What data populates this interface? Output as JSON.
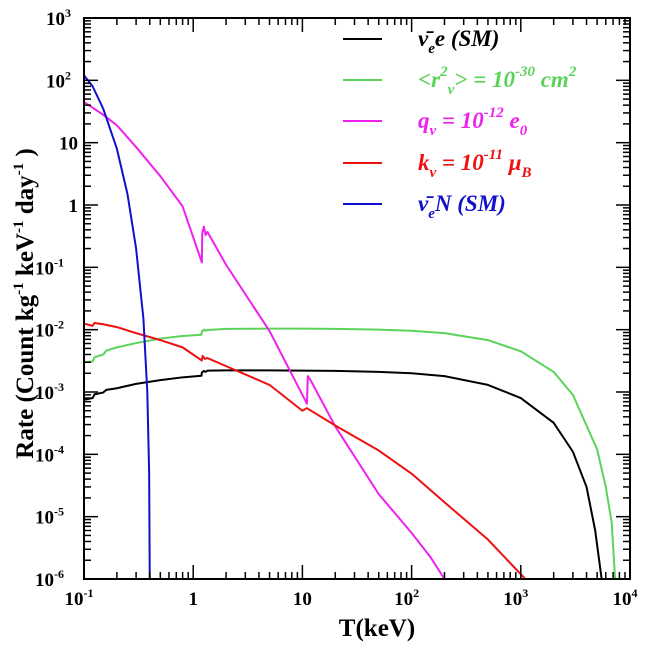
{
  "chart_data": {
    "type": "line",
    "title": "",
    "xlabel": "T(keV)",
    "ylabel_parts": [
      "Rate (Count kg",
      "-1",
      " keV",
      "-1",
      " day",
      "-1",
      " )"
    ],
    "xscale": "log",
    "yscale": "log",
    "xlim": [
      0.1,
      10000
    ],
    "ylim": [
      1e-06,
      1000
    ],
    "grid": false,
    "legend_position": "top-right",
    "x_ticks": [
      {
        "value": 0.1,
        "base": "10",
        "exp": "-1"
      },
      {
        "value": 1,
        "base": "1",
        "exp": ""
      },
      {
        "value": 10,
        "base": "10",
        "exp": ""
      },
      {
        "value": 100,
        "base": "10",
        "exp": "2"
      },
      {
        "value": 1000,
        "base": "10",
        "exp": "3"
      },
      {
        "value": 10000,
        "base": "10",
        "exp": "4"
      }
    ],
    "y_ticks": [
      {
        "value": 1e-06,
        "base": "10",
        "exp": "-6"
      },
      {
        "value": 1e-05,
        "base": "10",
        "exp": "-5"
      },
      {
        "value": 0.0001,
        "base": "10",
        "exp": "-4"
      },
      {
        "value": 0.001,
        "base": "10",
        "exp": "-3"
      },
      {
        "value": 0.01,
        "base": "10",
        "exp": "-2"
      },
      {
        "value": 0.1,
        "base": "10",
        "exp": "-1"
      },
      {
        "value": 1,
        "base": "1",
        "exp": ""
      },
      {
        "value": 10,
        "base": "10",
        "exp": ""
      },
      {
        "value": 100,
        "base": "10",
        "exp": "2"
      },
      {
        "value": 1000,
        "base": "10",
        "exp": "3"
      }
    ],
    "series": [
      {
        "name": "anti-nu_e e (SM)",
        "color": "#000000",
        "legend_parts": [
          [
            "ν̄",
            ""
          ],
          [
            "e",
            "sub"
          ],
          [
            "e (SM)",
            ""
          ]
        ],
        "points": [
          [
            0.1,
            0.00075
          ],
          [
            0.12,
            0.0008
          ],
          [
            0.125,
            0.00092
          ],
          [
            0.15,
            0.00098
          ],
          [
            0.16,
            0.00108
          ],
          [
            0.2,
            0.00115
          ],
          [
            0.3,
            0.00135
          ],
          [
            0.5,
            0.00155
          ],
          [
            0.8,
            0.00172
          ],
          [
            1.19,
            0.00182
          ],
          [
            1.2,
            0.00205
          ],
          [
            1.25,
            0.00218
          ],
          [
            1.3,
            0.0021
          ],
          [
            1.35,
            0.0022
          ],
          [
            2,
            0.00222
          ],
          [
            5,
            0.00222
          ],
          [
            10,
            0.0022
          ],
          [
            20,
            0.00218
          ],
          [
            50,
            0.0021
          ],
          [
            100,
            0.002
          ],
          [
            200,
            0.0018
          ],
          [
            500,
            0.0013
          ],
          [
            1000,
            0.0008
          ],
          [
            2000,
            0.00032
          ],
          [
            3000,
            0.00011
          ],
          [
            4000,
            3e-05
          ],
          [
            4800,
            6e-06
          ],
          [
            5500,
            1e-06
          ]
        ]
      },
      {
        "name": "<r_nu^2> = 10^-30 cm^2",
        "color": "#5bd35b",
        "legend_parts": [
          [
            "<r",
            ""
          ],
          [
            "2",
            "sup"
          ],
          [
            "ν",
            "sub"
          ],
          [
            "> = 10",
            ""
          ],
          [
            "-30",
            "sup"
          ],
          [
            " cm",
            ""
          ],
          [
            "2",
            "sup"
          ]
        ],
        "points": [
          [
            0.1,
            0.003
          ],
          [
            0.12,
            0.0031
          ],
          [
            0.125,
            0.0036
          ],
          [
            0.15,
            0.004
          ],
          [
            0.16,
            0.0046
          ],
          [
            0.2,
            0.0052
          ],
          [
            0.3,
            0.0061
          ],
          [
            0.5,
            0.0072
          ],
          [
            0.8,
            0.0079
          ],
          [
            1.19,
            0.0083
          ],
          [
            1.2,
            0.0093
          ],
          [
            1.25,
            0.01
          ],
          [
            1.3,
            0.0096
          ],
          [
            1.35,
            0.0099
          ],
          [
            2,
            0.0103
          ],
          [
            5,
            0.0104
          ],
          [
            10,
            0.0104
          ],
          [
            20,
            0.0103
          ],
          [
            50,
            0.01
          ],
          [
            100,
            0.0096
          ],
          [
            200,
            0.0088
          ],
          [
            500,
            0.0068
          ],
          [
            1000,
            0.0045
          ],
          [
            2000,
            0.0021
          ],
          [
            3000,
            0.0009
          ],
          [
            5000,
            0.00012
          ],
          [
            6000,
            3e-05
          ],
          [
            6800,
            8e-06
          ],
          [
            7300,
            1e-06
          ]
        ]
      },
      {
        "name": "q_nu = 10^-12 e_0",
        "color": "#ee22ee",
        "legend_parts": [
          [
            "q",
            ""
          ],
          [
            "ν",
            "sub"
          ],
          [
            " = 10",
            ""
          ],
          [
            "-12",
            "sup"
          ],
          [
            " e",
            ""
          ],
          [
            "0",
            "sub"
          ]
        ],
        "points": [
          [
            0.1,
            45
          ],
          [
            0.15,
            28
          ],
          [
            0.2,
            19
          ],
          [
            0.3,
            8.5
          ],
          [
            0.5,
            2.9
          ],
          [
            0.8,
            0.95
          ],
          [
            1.2,
            0.12
          ],
          [
            1.21,
            0.35
          ],
          [
            1.25,
            0.45
          ],
          [
            1.3,
            0.33
          ],
          [
            1.35,
            0.37
          ],
          [
            2,
            0.11
          ],
          [
            5,
            0.0095
          ],
          [
            10,
            0.0009
          ],
          [
            11,
            0.00065
          ],
          [
            11.2,
            0.0018
          ],
          [
            12,
            0.0015
          ],
          [
            20,
            0.00028
          ],
          [
            50,
            2.3e-05
          ],
          [
            100,
            5.5e-06
          ],
          [
            150,
            2.2e-06
          ],
          [
            200,
            1e-06
          ]
        ]
      },
      {
        "name": "k_nu = 10^-11 mu_B",
        "color": "#ee1111",
        "legend_parts": [
          [
            "k",
            ""
          ],
          [
            "ν",
            "sub"
          ],
          [
            " = 10",
            ""
          ],
          [
            "-11",
            "sup"
          ],
          [
            " μ",
            ""
          ],
          [
            "B",
            "sub"
          ]
        ],
        "points": [
          [
            0.1,
            0.0125
          ],
          [
            0.12,
            0.0115
          ],
          [
            0.125,
            0.0128
          ],
          [
            0.15,
            0.0122
          ],
          [
            0.2,
            0.011
          ],
          [
            0.3,
            0.0088
          ],
          [
            0.5,
            0.0068
          ],
          [
            0.8,
            0.0052
          ],
          [
            1.2,
            0.0032
          ],
          [
            1.22,
            0.0038
          ],
          [
            1.28,
            0.0034
          ],
          [
            1.35,
            0.0035
          ],
          [
            2,
            0.0026
          ],
          [
            5,
            0.0013
          ],
          [
            10,
            0.0005
          ],
          [
            11,
            0.00055
          ],
          [
            20,
            0.00029
          ],
          [
            50,
            0.000115
          ],
          [
            100,
            4.9e-05
          ],
          [
            200,
            1.7e-05
          ],
          [
            500,
            4.3e-06
          ],
          [
            800,
            1.8e-06
          ],
          [
            1100,
            1e-06
          ]
        ]
      },
      {
        "name": "anti-nu_e N (SM)",
        "color": "#1111cc",
        "legend_parts": [
          [
            "ν̄",
            ""
          ],
          [
            "e",
            "sub"
          ],
          [
            "N (SM)",
            ""
          ]
        ],
        "points": [
          [
            0.1,
            120
          ],
          [
            0.12,
            80
          ],
          [
            0.15,
            35
          ],
          [
            0.2,
            8
          ],
          [
            0.25,
            1.5
          ],
          [
            0.3,
            0.2
          ],
          [
            0.35,
            0.015
          ],
          [
            0.38,
            0.001
          ],
          [
            0.395,
            5e-05
          ],
          [
            0.4,
            1e-06
          ]
        ]
      }
    ]
  }
}
